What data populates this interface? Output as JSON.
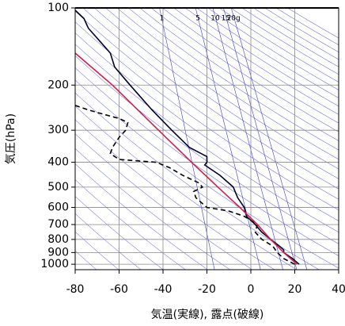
{
  "chart_data": {
    "type": "line",
    "y_label": "気圧(hPa)",
    "x_label": "気温(実線), 露点(破線)",
    "xlim": [
      -80,
      40
    ],
    "xticks": [
      -80,
      -60,
      -40,
      -20,
      0,
      20,
      40
    ],
    "ylim": [
      100,
      1050
    ],
    "yticks": [
      100,
      200,
      300,
      400,
      500,
      600,
      700,
      800,
      900,
      1000
    ],
    "log_y": true,
    "reverse_y": true,
    "grid": true,
    "mixing_ratio": {
      "values": [
        1,
        5,
        10,
        15,
        20
      ],
      "value_labels": [
        "1",
        "5",
        "10",
        "15",
        "20g"
      ],
      "color": "#3a3ad8"
    },
    "series": [
      {
        "color": "#000033",
        "style": "solid",
        "x": [
          -80,
          -76,
          -74,
          -64,
          -62,
          -55,
          -45,
          -36,
          -28,
          -20,
          -20,
          -21,
          -14,
          -8,
          -6,
          -3,
          -2,
          2,
          5,
          9,
          13,
          15,
          15,
          19,
          22
        ],
        "values": [
          102,
          110,
          120,
          150,
          170,
          200,
          250,
          300,
          350,
          380,
          400,
          410,
          450,
          500,
          550,
          600,
          650,
          700,
          750,
          800,
          850,
          880,
          900,
          950,
          1000
        ]
      },
      {
        "color": "#000000",
        "style": "dashed",
        "x": [
          -80,
          -74,
          -67,
          -60,
          -56,
          -57,
          -60,
          -63,
          -64,
          -60,
          -43,
          -37,
          -31,
          -24,
          -22,
          -26,
          -25,
          -22,
          -20,
          -10,
          -3,
          3,
          2,
          5,
          10,
          12,
          15,
          20
        ],
        "values": [
          240,
          250,
          260,
          270,
          280,
          300,
          320,
          350,
          370,
          390,
          400,
          420,
          450,
          480,
          500,
          520,
          550,
          580,
          600,
          620,
          650,
          700,
          750,
          800,
          850,
          900,
          950,
          1000
        ]
      },
      {
        "color": "#d0204a",
        "style": "solid",
        "x": [
          -80,
          -63,
          -42,
          -27,
          -15,
          -5,
          3,
          9,
          15,
          21
        ],
        "values": [
          150,
          200,
          300,
          400,
          500,
          600,
          700,
          800,
          900,
          1000
        ]
      }
    ]
  }
}
